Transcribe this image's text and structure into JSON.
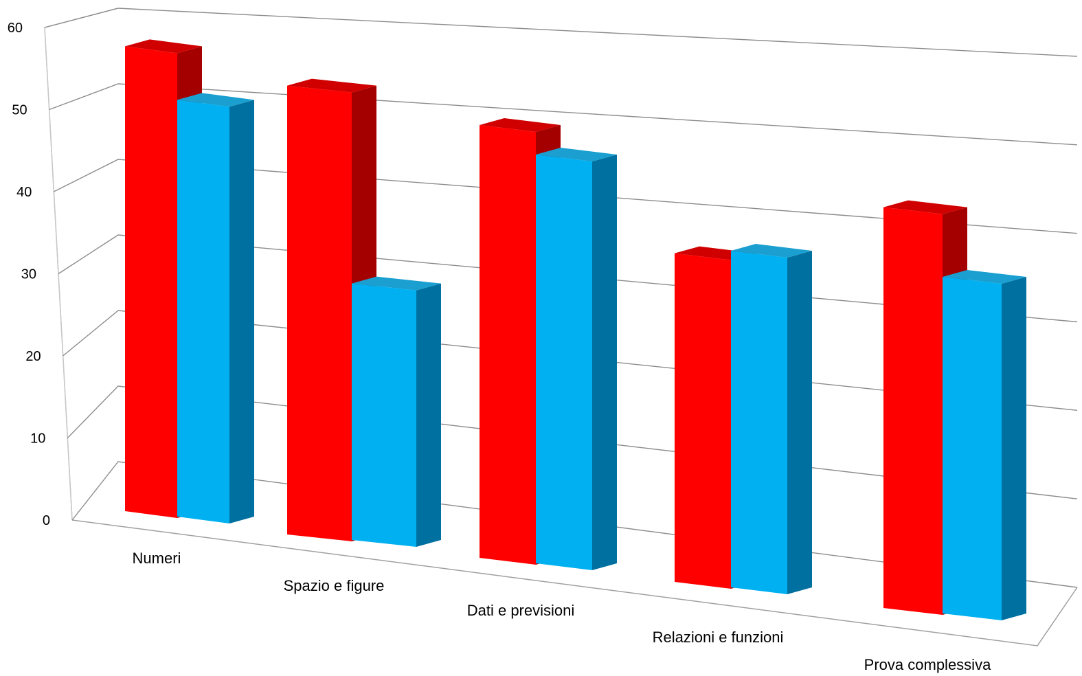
{
  "chart_data": {
    "type": "bar",
    "categories": [
      "Numeri",
      "Spazio e figure",
      "Dati e previsioni",
      "Relazioni e funzioni",
      "Prova complessiva"
    ],
    "series": [
      {
        "values": [
          58,
          56,
          54,
          41,
          50
        ],
        "color": "#ff0000",
        "side_color": "#a50000",
        "top_color": "#d10000"
      },
      {
        "values": [
          52,
          32,
          51,
          42,
          42
        ],
        "color": "#00b0f0",
        "side_color": "#0070a0",
        "top_color": "#1a9fd0"
      }
    ],
    "y_ticks": [
      "0",
      "10",
      "20",
      "30",
      "40",
      "50",
      "60"
    ],
    "ylim": [
      0,
      60
    ],
    "grid": true,
    "legend": "none",
    "style": "3d-perspective"
  }
}
